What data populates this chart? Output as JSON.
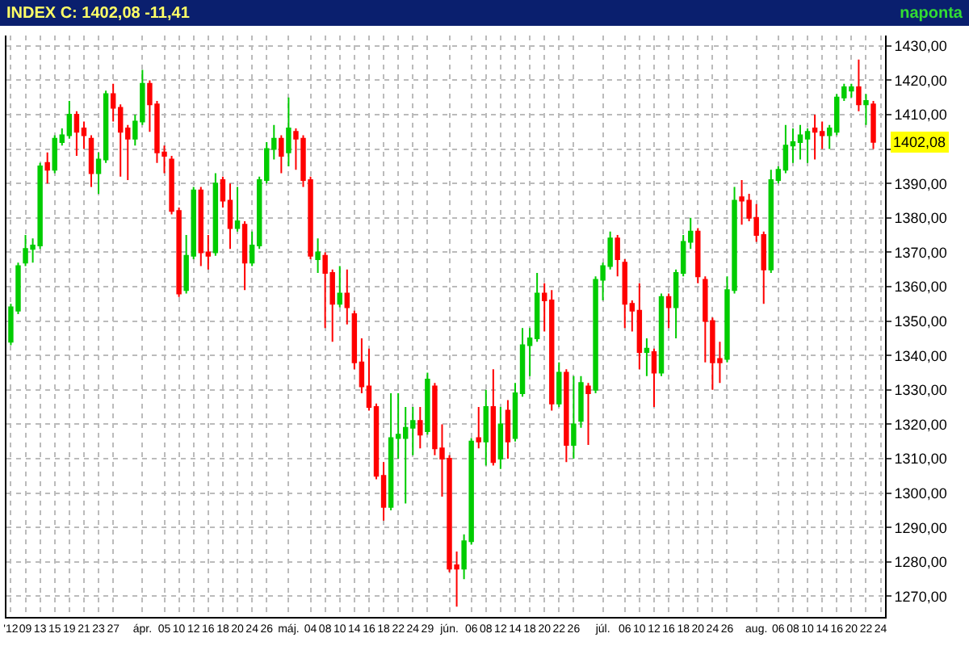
{
  "chart_data": {
    "type": "candlestick",
    "title": "INDEX C: 1402,08 -11,41",
    "subtitle": "naponta",
    "categories": [
      "'12",
      null,
      "09",
      null,
      "13",
      null,
      "15",
      null,
      "19",
      null,
      "21",
      null,
      "23",
      null,
      "27",
      null,
      null,
      null,
      "ápr.",
      null,
      null,
      "05",
      null,
      "10",
      null,
      "12",
      null,
      "16",
      null,
      "18",
      null,
      "20",
      null,
      "24",
      null,
      "26",
      null,
      null,
      "máj.",
      null,
      null,
      "04",
      null,
      "08",
      null,
      "10",
      null,
      "14",
      null,
      "16",
      null,
      "18",
      null,
      "22",
      null,
      "24",
      null,
      "29",
      null,
      null,
      "jún.",
      null,
      null,
      "06",
      null,
      "08",
      null,
      "12",
      null,
      "14",
      null,
      "18",
      null,
      "20",
      null,
      "22",
      null,
      "26",
      null,
      null,
      null,
      "júl.",
      null,
      null,
      "06",
      null,
      "10",
      null,
      "12",
      null,
      "16",
      null,
      "18",
      null,
      "20",
      null,
      "24",
      null,
      "26",
      null,
      null,
      null,
      "aug.",
      null,
      null,
      "06",
      null,
      "08",
      null,
      "10",
      null,
      "14",
      null,
      "16",
      null,
      "20",
      null,
      "22",
      null,
      "24"
    ],
    "ohlc": [
      [
        1344,
        1355,
        1343,
        1354
      ],
      [
        1353,
        1367,
        1352,
        1366
      ],
      [
        1367,
        1375,
        1366,
        1371
      ],
      [
        1371,
        1374,
        1367,
        1372
      ],
      [
        1372,
        1396,
        1371,
        1395
      ],
      [
        1396,
        1399,
        1390,
        1394
      ],
      [
        1394,
        1404,
        1393,
        1403
      ],
      [
        1402,
        1406,
        1401,
        1404
      ],
      [
        1404,
        1414,
        1403,
        1410
      ],
      [
        1410,
        1411,
        1398,
        1405
      ],
      [
        1406,
        1408,
        1400,
        1404
      ],
      [
        1403,
        1404,
        1389,
        1393
      ],
      [
        1393,
        1399,
        1387,
        1397
      ],
      [
        1397,
        1417,
        1396,
        1416
      ],
      [
        1416,
        1419,
        1408,
        1412
      ],
      [
        1412,
        1413,
        1392,
        1405
      ],
      [
        1406,
        1407,
        1391,
        1403
      ],
      [
        1403,
        1410,
        1401,
        1408
      ],
      [
        1408,
        1423,
        1407,
        1419
      ],
      [
        1419,
        1420,
        1405,
        1413
      ],
      [
        1413,
        1414,
        1396,
        1399
      ],
      [
        1399,
        1401,
        1393,
        1398
      ],
      [
        1397,
        1398,
        1381,
        1382
      ],
      [
        1382,
        1383,
        1357,
        1358
      ],
      [
        1359,
        1375,
        1358,
        1369
      ],
      [
        1369,
        1389,
        1368,
        1388
      ],
      [
        1388,
        1389,
        1366,
        1370
      ],
      [
        1370,
        1375,
        1365,
        1369
      ],
      [
        1370,
        1393,
        1369,
        1390
      ],
      [
        1391,
        1392,
        1383,
        1385
      ],
      [
        1385,
        1390,
        1371,
        1377
      ],
      [
        1377,
        1389,
        1376,
        1379
      ],
      [
        1378,
        1379,
        1359,
        1367
      ],
      [
        1367,
        1376,
        1366,
        1372
      ],
      [
        1372,
        1392,
        1371,
        1391
      ],
      [
        1391,
        1402,
        1390,
        1400
      ],
      [
        1400,
        1407,
        1397,
        1403
      ],
      [
        1403,
        1404,
        1393,
        1398
      ],
      [
        1399,
        1415,
        1395,
        1406
      ],
      [
        1405,
        1406,
        1394,
        1403
      ],
      [
        1403,
        1404,
        1389,
        1391
      ],
      [
        1391,
        1392,
        1368,
        1369
      ],
      [
        1368,
        1374,
        1364,
        1370
      ],
      [
        1369,
        1370,
        1348,
        1364
      ],
      [
        1364,
        1365,
        1344,
        1355
      ],
      [
        1355,
        1366,
        1354,
        1358
      ],
      [
        1358,
        1365,
        1349,
        1354
      ],
      [
        1352,
        1353,
        1336,
        1338
      ],
      [
        1338,
        1345,
        1329,
        1331
      ],
      [
        1331,
        1342,
        1324,
        1325
      ],
      [
        1325,
        1326,
        1304,
        1305
      ],
      [
        1305,
        1309,
        1292,
        1296
      ],
      [
        1296,
        1329,
        1295,
        1316
      ],
      [
        1316,
        1329,
        1310,
        1317
      ],
      [
        1316,
        1325,
        1297,
        1319
      ],
      [
        1319,
        1325,
        1311,
        1321
      ],
      [
        1321,
        1325,
        1313,
        1317
      ],
      [
        1318,
        1335,
        1317,
        1333
      ],
      [
        1331,
        1332,
        1311,
        1313
      ],
      [
        1313,
        1320,
        1299,
        1310
      ],
      [
        1310,
        1311,
        1277,
        1278
      ],
      [
        1279,
        1283,
        1267,
        1278
      ],
      [
        1278,
        1288,
        1275,
        1286
      ],
      [
        1286,
        1316,
        1285,
        1315
      ],
      [
        1316,
        1325,
        1313,
        1315
      ],
      [
        1315,
        1330,
        1308,
        1325
      ],
      [
        1325,
        1336,
        1308,
        1309
      ],
      [
        1310,
        1325,
        1307,
        1320
      ],
      [
        1324,
        1327,
        1310,
        1315
      ],
      [
        1316,
        1332,
        1315,
        1329
      ],
      [
        1329,
        1348,
        1328,
        1343
      ],
      [
        1343,
        1348,
        1334,
        1345
      ],
      [
        1345,
        1364,
        1344,
        1358
      ],
      [
        1358,
        1361,
        1347,
        1356
      ],
      [
        1356,
        1359,
        1324,
        1326
      ],
      [
        1326,
        1338,
        1325,
        1335
      ],
      [
        1335,
        1336,
        1309,
        1314
      ],
      [
        1314,
        1334,
        1310,
        1320
      ],
      [
        1321,
        1334,
        1319,
        1332
      ],
      [
        1331,
        1332,
        1314,
        1329
      ],
      [
        1330,
        1363,
        1329,
        1362
      ],
      [
        1362,
        1367,
        1356,
        1366
      ],
      [
        1366,
        1376,
        1365,
        1374
      ],
      [
        1374,
        1375,
        1363,
        1368
      ],
      [
        1367,
        1368,
        1348,
        1355
      ],
      [
        1355,
        1356,
        1347,
        1353
      ],
      [
        1353,
        1361,
        1336,
        1341
      ],
      [
        1341,
        1345,
        1334,
        1342
      ],
      [
        1341,
        1342,
        1325,
        1335
      ],
      [
        1335,
        1358,
        1334,
        1357
      ],
      [
        1357,
        1358,
        1348,
        1354
      ],
      [
        1354,
        1365,
        1345,
        1364
      ],
      [
        1364,
        1375,
        1363,
        1373
      ],
      [
        1373,
        1380,
        1371,
        1376
      ],
      [
        1376,
        1377,
        1361,
        1363
      ],
      [
        1362,
        1363,
        1338,
        1350
      ],
      [
        1350,
        1351,
        1330,
        1338
      ],
      [
        1339,
        1344,
        1332,
        1338
      ],
      [
        1339,
        1363,
        1338,
        1359
      ],
      [
        1359,
        1389,
        1358,
        1385
      ],
      [
        1386,
        1391,
        1378,
        1385
      ],
      [
        1385,
        1387,
        1379,
        1380
      ],
      [
        1380,
        1384,
        1373,
        1375
      ],
      [
        1375,
        1376,
        1355,
        1365
      ],
      [
        1365,
        1394,
        1364,
        1391
      ],
      [
        1391,
        1395,
        1390,
        1394
      ],
      [
        1394,
        1407,
        1393,
        1401
      ],
      [
        1401,
        1406,
        1396,
        1402
      ],
      [
        1402,
        1407,
        1397,
        1404
      ],
      [
        1403,
        1406,
        1396,
        1405
      ],
      [
        1406,
        1410,
        1397,
        1405
      ],
      [
        1405,
        1408,
        1400,
        1404
      ],
      [
        1404,
        1407,
        1400,
        1406
      ],
      [
        1405,
        1416,
        1404,
        1415
      ],
      [
        1415,
        1419,
        1414,
        1418
      ],
      [
        1417,
        1419,
        1415,
        1418
      ],
      [
        1418,
        1426,
        1411,
        1413
      ],
      [
        1413,
        1416,
        1407,
        1414
      ],
      [
        1413,
        1414,
        1400,
        1402.08
      ],
      null
    ],
    "colors": [
      "#00cc00",
      "#00cc00",
      "#00cc00",
      "#00cc00",
      "#00cc00",
      "#ff0000",
      "#00cc00",
      "#00cc00",
      "#00cc00",
      "#ff0000",
      "#ff0000",
      "#ff0000",
      "#00cc00",
      "#00cc00",
      "#ff0000",
      "#ff0000",
      "#ff0000",
      "#00cc00",
      "#00cc00",
      "#ff0000",
      "#ff0000",
      "#ff0000",
      "#ff0000",
      "#ff0000",
      "#00cc00",
      "#00cc00",
      "#ff0000",
      "#ff0000",
      "#00cc00",
      "#ff0000",
      "#ff0000",
      "#00cc00",
      "#ff0000",
      "#00cc00",
      "#00cc00",
      "#00cc00",
      "#00cc00",
      "#ff0000",
      "#00cc00",
      "#ff0000",
      "#ff0000",
      "#ff0000",
      "#00cc00",
      "#ff0000",
      "#ff0000",
      "#00cc00",
      "#ff0000",
      "#ff0000",
      "#ff0000",
      "#ff0000",
      "#ff0000",
      "#ff0000",
      "#00cc00",
      "#00cc00",
      "#00cc00",
      "#00cc00",
      "#ff0000",
      "#00cc00",
      "#ff0000",
      "#ff0000",
      "#ff0000",
      "#ff0000",
      "#00cc00",
      "#00cc00",
      "#ff0000",
      "#00cc00",
      "#ff0000",
      "#00cc00",
      "#ff0000",
      "#00cc00",
      "#00cc00",
      "#00cc00",
      "#00cc00",
      "#ff0000",
      "#ff0000",
      "#00cc00",
      "#ff0000",
      "#00cc00",
      "#00cc00",
      "#ff0000",
      "#00cc00",
      "#00cc00",
      "#00cc00",
      "#ff0000",
      "#ff0000",
      "#ff0000",
      "#ff0000",
      "#00cc00",
      "#ff0000",
      "#00cc00",
      "#ff0000",
      "#00cc00",
      "#00cc00",
      "#00cc00",
      "#ff0000",
      "#ff0000",
      "#ff0000",
      "#ff0000",
      "#00cc00",
      "#00cc00",
      "#ff0000",
      "#ff0000",
      "#ff0000",
      "#ff0000",
      "#00cc00",
      "#00cc00",
      "#00cc00",
      "#00cc00",
      "#00cc00",
      "#00cc00",
      "#ff0000",
      "#ff0000",
      "#00cc00",
      "#00cc00",
      "#00cc00",
      "#00cc00",
      "#ff0000",
      "#00cc00",
      "#ff0000",
      null
    ],
    "ylim": [
      1264,
      1433
    ],
    "yticks": [
      {
        "value": 1270,
        "label": "1270,00"
      },
      {
        "value": 1280,
        "label": "1280,00"
      },
      {
        "value": 1290,
        "label": "1290,00"
      },
      {
        "value": 1300,
        "label": "1300,00"
      },
      {
        "value": 1310,
        "label": "1310,00"
      },
      {
        "value": 1320,
        "label": "1320,00"
      },
      {
        "value": 1330,
        "label": "1330,00"
      },
      {
        "value": 1340,
        "label": "1340,00"
      },
      {
        "value": 1350,
        "label": "1350,00"
      },
      {
        "value": 1360,
        "label": "1360,00"
      },
      {
        "value": 1370,
        "label": "1370,00"
      },
      {
        "value": 1380,
        "label": "1380,00"
      },
      {
        "value": 1390,
        "label": "1390,00"
      },
      {
        "value": 1400,
        "label": null
      },
      {
        "value": 1410,
        "label": "1410,00"
      },
      {
        "value": 1420,
        "label": "1420,00"
      },
      {
        "value": 1430,
        "label": "1430,00"
      }
    ],
    "annotations": [
      "1402,08"
    ],
    "grid": true
  }
}
